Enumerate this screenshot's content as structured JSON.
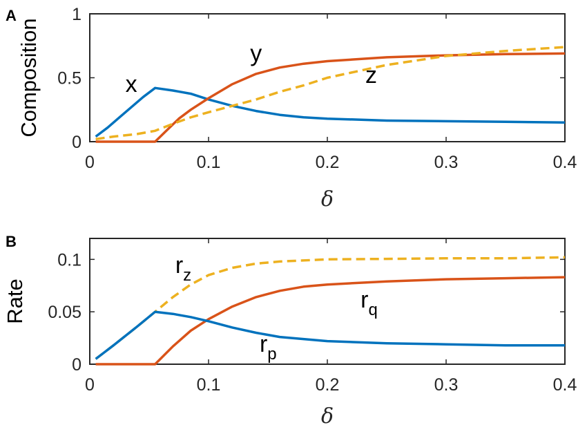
{
  "chart_data": [
    {
      "panel_label": "A",
      "type": "line",
      "xlabel": "δ",
      "ylabel": "Composition",
      "xlim": [
        0,
        0.4
      ],
      "ylim": [
        0,
        1
      ],
      "xticks": [
        "0",
        "0.1",
        "0.2",
        "0.3",
        "0.4"
      ],
      "yticks": [
        "0",
        "0.5",
        "1"
      ],
      "xtick_values": [
        0,
        0.1,
        0.2,
        0.3,
        0.4
      ],
      "ytick_values": [
        0,
        0.5,
        1
      ],
      "grid": false,
      "legend": "none",
      "series": [
        {
          "name": "x",
          "color": "#0072BD",
          "dash": "solid",
          "x": [
            0.005,
            0.015,
            0.025,
            0.035,
            0.045,
            0.055,
            0.07,
            0.085,
            0.1,
            0.12,
            0.14,
            0.16,
            0.18,
            0.2,
            0.25,
            0.3,
            0.35,
            0.4
          ],
          "y": [
            0.04,
            0.11,
            0.19,
            0.27,
            0.35,
            0.42,
            0.4,
            0.375,
            0.33,
            0.28,
            0.24,
            0.21,
            0.19,
            0.18,
            0.165,
            0.16,
            0.155,
            0.15
          ]
        },
        {
          "name": "y",
          "color": "#D95319",
          "dash": "solid",
          "x": [
            0.005,
            0.055,
            0.065,
            0.075,
            0.085,
            0.1,
            0.12,
            0.14,
            0.16,
            0.18,
            0.2,
            0.25,
            0.3,
            0.35,
            0.4
          ],
          "y": [
            0,
            0,
            0.09,
            0.18,
            0.25,
            0.34,
            0.45,
            0.53,
            0.58,
            0.61,
            0.63,
            0.66,
            0.675,
            0.685,
            0.69
          ]
        },
        {
          "name": "z",
          "color": "#EDB120",
          "dash": "dashed",
          "x": [
            0.005,
            0.02,
            0.04,
            0.055,
            0.07,
            0.085,
            0.1,
            0.12,
            0.14,
            0.16,
            0.18,
            0.2,
            0.25,
            0.3,
            0.35,
            0.4
          ],
          "y": [
            0.02,
            0.04,
            0.06,
            0.085,
            0.14,
            0.19,
            0.23,
            0.28,
            0.33,
            0.39,
            0.44,
            0.5,
            0.6,
            0.67,
            0.71,
            0.74
          ]
        }
      ],
      "annotations": [
        {
          "text": "x",
          "sub": "",
          "x": 0.03,
          "y": 0.39
        },
        {
          "text": "y",
          "sub": "",
          "x": 0.135,
          "y": 0.63
        },
        {
          "text": "z",
          "sub": "",
          "x": 0.232,
          "y": 0.46
        }
      ]
    },
    {
      "panel_label": "B",
      "type": "line",
      "xlabel": "δ",
      "ylabel": "Rate",
      "xlim": [
        0,
        0.4
      ],
      "ylim": [
        0,
        0.12
      ],
      "xticks": [
        "0",
        "0.1",
        "0.2",
        "0.3",
        "0.4"
      ],
      "yticks": [
        "0",
        "0.05",
        "0.1"
      ],
      "xtick_values": [
        0,
        0.1,
        0.2,
        0.3,
        0.4
      ],
      "ytick_values": [
        0,
        0.05,
        0.1
      ],
      "grid": false,
      "legend": "none",
      "series": [
        {
          "name": "rz",
          "color": "#EDB120",
          "dash": "dashed",
          "x": [
            0.005,
            0.02,
            0.04,
            0.055,
            0.07,
            0.085,
            0.1,
            0.12,
            0.14,
            0.16,
            0.2,
            0.25,
            0.3,
            0.35,
            0.4
          ],
          "y": [
            0.005,
            0.018,
            0.036,
            0.05,
            0.064,
            0.076,
            0.085,
            0.092,
            0.096,
            0.098,
            0.1,
            0.1005,
            0.101,
            0.101,
            0.102
          ]
        },
        {
          "name": "rq",
          "color": "#D95319",
          "dash": "solid",
          "x": [
            0.005,
            0.055,
            0.07,
            0.085,
            0.1,
            0.12,
            0.14,
            0.16,
            0.18,
            0.2,
            0.25,
            0.3,
            0.35,
            0.4
          ],
          "y": [
            0,
            0,
            0.017,
            0.032,
            0.043,
            0.055,
            0.064,
            0.07,
            0.074,
            0.076,
            0.079,
            0.081,
            0.082,
            0.083
          ]
        },
        {
          "name": "rp",
          "color": "#0072BD",
          "dash": "solid",
          "x": [
            0.005,
            0.02,
            0.04,
            0.055,
            0.07,
            0.085,
            0.1,
            0.12,
            0.14,
            0.16,
            0.18,
            0.2,
            0.25,
            0.3,
            0.35,
            0.4
          ],
          "y": [
            0.005,
            0.018,
            0.036,
            0.05,
            0.048,
            0.045,
            0.041,
            0.035,
            0.03,
            0.026,
            0.024,
            0.022,
            0.02,
            0.019,
            0.018,
            0.018
          ]
        }
      ],
      "annotations": [
        {
          "text": "r",
          "sub": "z",
          "x": 0.072,
          "y": 0.087
        },
        {
          "text": "r",
          "sub": "q",
          "x": 0.228,
          "y": 0.054
        },
        {
          "text": "r",
          "sub": "p",
          "x": 0.143,
          "y": 0.012
        }
      ]
    }
  ]
}
